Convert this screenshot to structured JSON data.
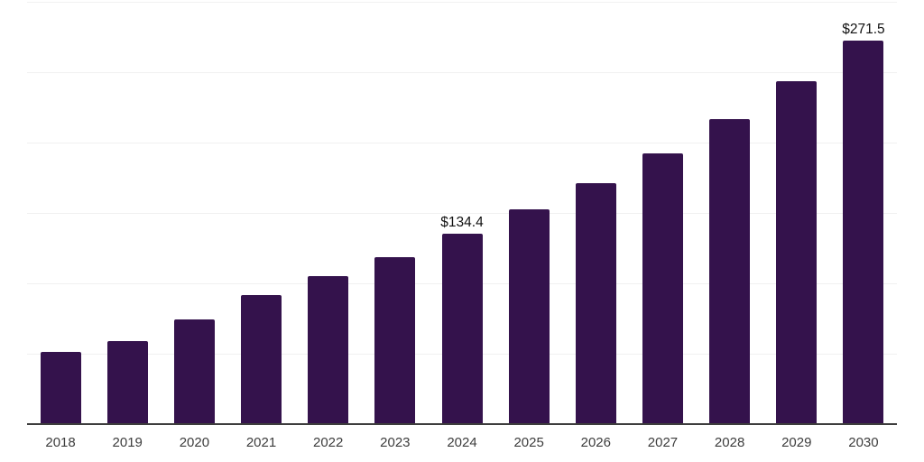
{
  "chart_data": {
    "type": "bar",
    "title": "",
    "xlabel": "",
    "ylabel": "",
    "categories": [
      "2018",
      "2019",
      "2020",
      "2021",
      "2022",
      "2023",
      "2024",
      "2025",
      "2026",
      "2027",
      "2028",
      "2029",
      "2030"
    ],
    "values": [
      50.7,
      58.3,
      73.5,
      91.2,
      104.2,
      118.0,
      134.4,
      151.8,
      170.8,
      191.9,
      215.9,
      242.9,
      271.5
    ],
    "data_labels": {
      "2024": "$134.4",
      "2030": "$271.5"
    },
    "ylim": [
      0,
      300
    ],
    "grid_step": 50,
    "grid": true,
    "legend": false,
    "bar_color": "#34124c",
    "grid_color": "#f1f1f1",
    "axis_line_color": "#3d3d3d",
    "data_label_color": "#111111",
    "tick_label_color": "#3d3d3d"
  }
}
